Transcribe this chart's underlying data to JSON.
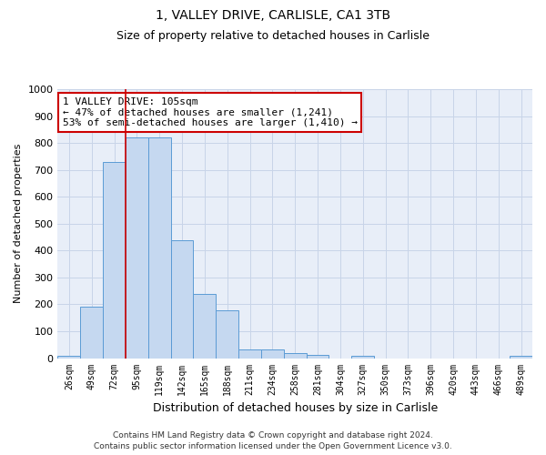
{
  "title1": "1, VALLEY DRIVE, CARLISLE, CA1 3TB",
  "title2": "Size of property relative to detached houses in Carlisle",
  "xlabel": "Distribution of detached houses by size in Carlisle",
  "ylabel": "Number of detached properties",
  "footer1": "Contains HM Land Registry data © Crown copyright and database right 2024.",
  "footer2": "Contains public sector information licensed under the Open Government Licence v3.0.",
  "bar_labels": [
    "26sqm",
    "49sqm",
    "72sqm",
    "95sqm",
    "119sqm",
    "142sqm",
    "165sqm",
    "188sqm",
    "211sqm",
    "234sqm",
    "258sqm",
    "281sqm",
    "304sqm",
    "327sqm",
    "350sqm",
    "373sqm",
    "396sqm",
    "420sqm",
    "443sqm",
    "466sqm",
    "489sqm"
  ],
  "bar_values": [
    10,
    190,
    730,
    820,
    820,
    440,
    238,
    178,
    32,
    32,
    18,
    12,
    0,
    7,
    0,
    0,
    0,
    0,
    0,
    0,
    8
  ],
  "bar_color": "#c5d8f0",
  "bar_edge_color": "#5b9bd5",
  "grid_color": "#c8d4e8",
  "background_color": "#e8eef8",
  "annotation_text": "1 VALLEY DRIVE: 105sqm\n← 47% of detached houses are smaller (1,241)\n53% of semi-detached houses are larger (1,410) →",
  "vline_x_index": 3,
  "vline_color": "#cc0000",
  "ylim": [
    0,
    1000
  ],
  "yticks": [
    0,
    100,
    200,
    300,
    400,
    500,
    600,
    700,
    800,
    900,
    1000
  ],
  "title1_fontsize": 10,
  "title2_fontsize": 9,
  "ylabel_fontsize": 8,
  "xlabel_fontsize": 9,
  "tick_fontsize": 8,
  "xtick_fontsize": 7
}
